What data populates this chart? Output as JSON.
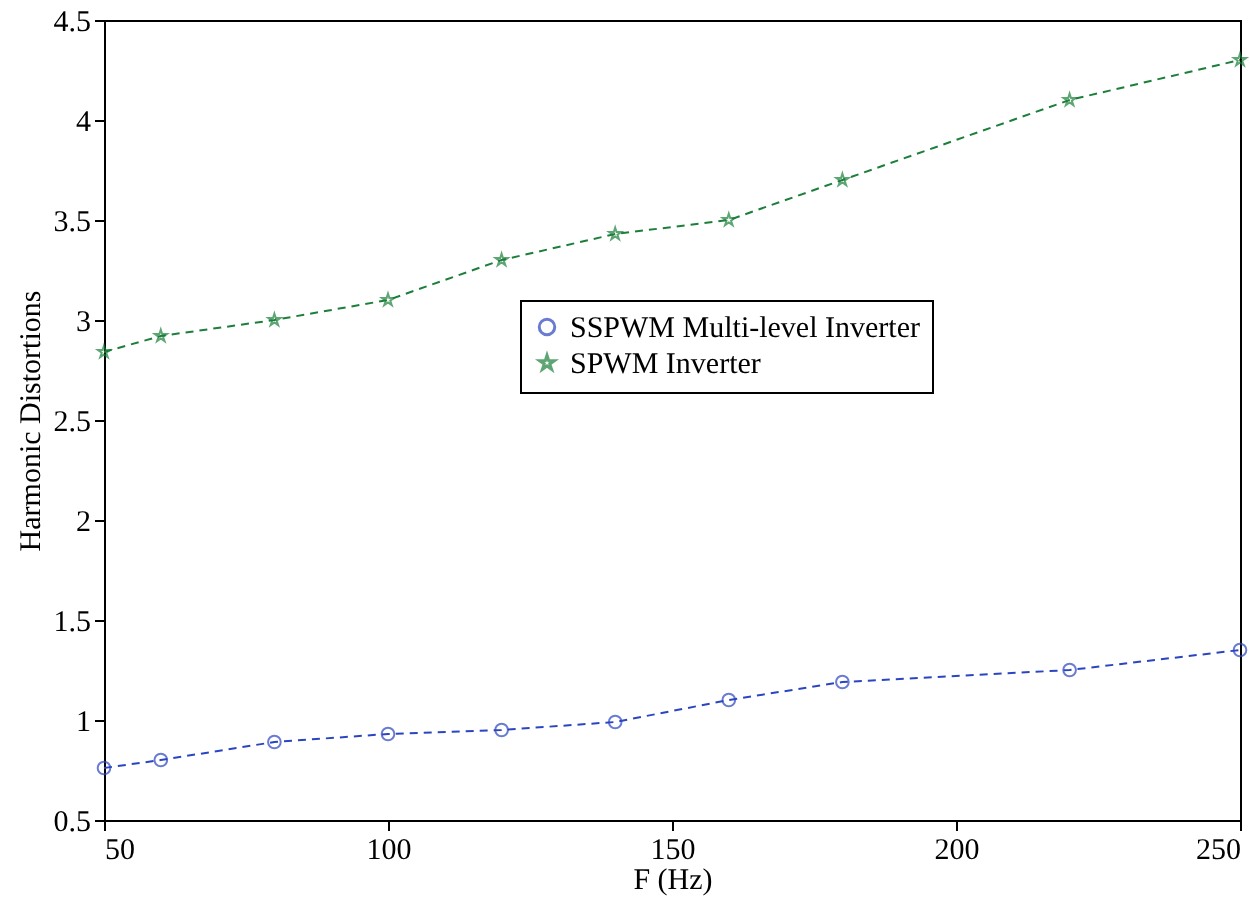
{
  "chart_data": {
    "type": "line",
    "xlabel": "F (Hz)",
    "ylabel": "Harmonic Distortions",
    "series": [
      {
        "name": "SSPWM Multi-level Inverter",
        "color": "#2b45c0",
        "marker": "circle",
        "x": [
          50,
          60,
          80,
          100,
          120,
          140,
          160,
          180,
          220,
          250
        ],
        "values": [
          0.76,
          0.8,
          0.89,
          0.93,
          0.95,
          0.99,
          1.1,
          1.19,
          1.25,
          1.35
        ]
      },
      {
        "name": "SPWM Inverter",
        "color": "#1b7f3a",
        "marker": "star",
        "x": [
          50,
          60,
          80,
          100,
          120,
          140,
          160,
          180,
          220,
          250
        ],
        "values": [
          2.84,
          2.92,
          3.0,
          3.1,
          3.3,
          3.43,
          3.5,
          3.7,
          4.1,
          4.3
        ]
      }
    ],
    "xlim": [
      50,
      250
    ],
    "xticks": [
      50,
      100,
      150,
      200,
      250
    ],
    "ylim": [
      0.5,
      4.5
    ],
    "yticks": [
      0.5,
      1,
      1.5,
      2,
      2.5,
      3,
      3.5,
      4,
      4.5
    ],
    "legend": "right",
    "line_style": "dashed",
    "grid": false
  }
}
